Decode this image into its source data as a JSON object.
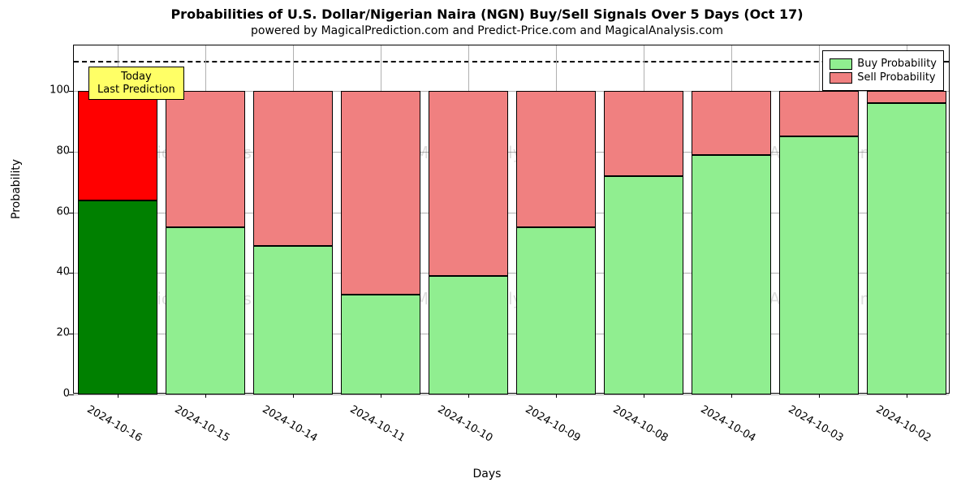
{
  "chart": {
    "type": "stacked-bar",
    "title": "Probabilities of U.S. Dollar/Nigerian Naira (NGN) Buy/Sell Signals Over 5 Days (Oct 17)",
    "subtitle": "powered by MagicalPrediction.com and Predict-Price.com and MagicalAnalysis.com",
    "title_fontsize": 16,
    "subtitle_fontsize": 14,
    "xlabel": "Days",
    "ylabel": "Probability",
    "label_fontsize": 14,
    "tick_fontsize": 13,
    "background_color": "#ffffff",
    "grid_color": "#b0b0b0",
    "border_color": "#000000",
    "ylim": [
      0,
      115
    ],
    "yticks": [
      0,
      20,
      40,
      60,
      80,
      100
    ],
    "dashed_reference_y": 110,
    "bar_width": 0.9,
    "categories": [
      "2024-10-16",
      "2024-10-15",
      "2024-10-14",
      "2024-10-11",
      "2024-10-10",
      "2024-10-09",
      "2024-10-08",
      "2024-10-04",
      "2024-10-03",
      "2024-10-02"
    ],
    "series": {
      "buy": {
        "label": "Buy Probability",
        "values": [
          64,
          55,
          49,
          33,
          39,
          55,
          72,
          79,
          85,
          96
        ],
        "color_default": "#90ee90",
        "color_highlight": "#008000"
      },
      "sell": {
        "label": "Sell Probability",
        "values": [
          36,
          45,
          51,
          67,
          61,
          45,
          28,
          21,
          15,
          4
        ],
        "color_default": "#f08080",
        "color_highlight": "#ff0000"
      }
    },
    "highlight_index": 0,
    "annotation": {
      "text_line1": "Today",
      "text_line2": "Last Prediction",
      "background": "#ffff66"
    },
    "legend": {
      "items": [
        {
          "label": "Buy Probability",
          "color": "#90ee90"
        },
        {
          "label": "Sell Probability",
          "color": "#f08080"
        }
      ]
    },
    "watermark_text": "MagicalAnalysis.com"
  }
}
